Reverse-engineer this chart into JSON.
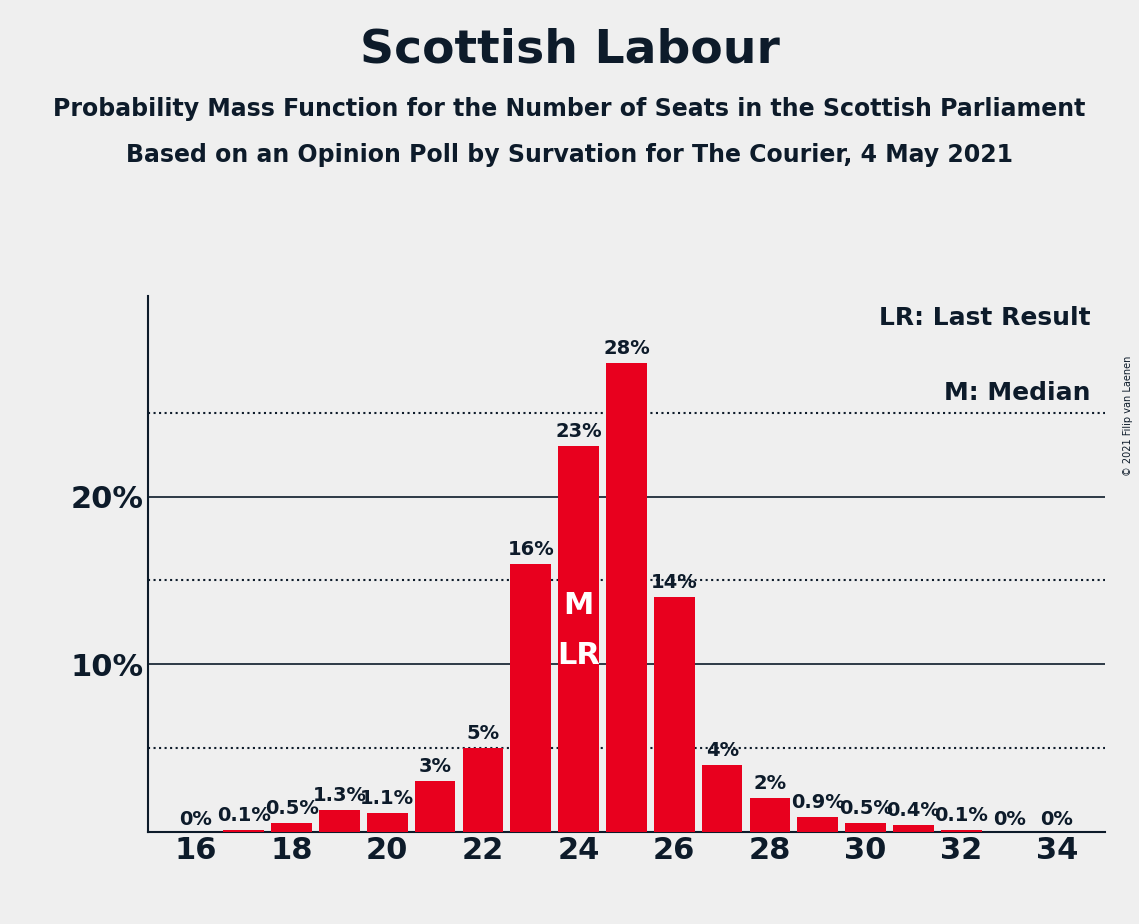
{
  "title": "Scottish Labour",
  "subtitle1": "Probability Mass Function for the Number of Seats in the Scottish Parliament",
  "subtitle2": "Based on an Opinion Poll by Survation for The Courier, 4 May 2021",
  "copyright_text": "© 2021 Filip van Laenen",
  "seats": [
    16,
    17,
    18,
    19,
    20,
    21,
    22,
    23,
    24,
    25,
    26,
    27,
    28,
    29,
    30,
    31,
    32,
    33,
    34
  ],
  "probabilities": [
    0.0,
    0.1,
    0.5,
    1.3,
    1.1,
    3.0,
    5.0,
    16.0,
    23.0,
    28.0,
    14.0,
    4.0,
    2.0,
    0.9,
    0.5,
    0.4,
    0.1,
    0.0,
    0.0
  ],
  "labels": [
    "0%",
    "0.1%",
    "0.5%",
    "1.3%",
    "1.1%",
    "3%",
    "5%",
    "16%",
    "23%",
    "28%",
    "14%",
    "4%",
    "2%",
    "0.9%",
    "0.5%",
    "0.4%",
    "0.1%",
    "0%",
    "0%"
  ],
  "bar_color": "#e8001e",
  "background_color": "#efefef",
  "text_color": "#0d1b2a",
  "median_seat": 24,
  "last_result_seat": 24,
  "legend_lr": "LR: Last Result",
  "legend_m": "M: Median",
  "yticks": [
    10,
    20
  ],
  "dotted_lines": [
    5,
    15,
    25
  ],
  "ylim": [
    0,
    32
  ],
  "title_fontsize": 34,
  "subtitle_fontsize": 17,
  "axis_tick_fontsize": 22,
  "bar_label_fontsize": 14,
  "legend_fontsize": 18,
  "ml_fontsize": 22
}
